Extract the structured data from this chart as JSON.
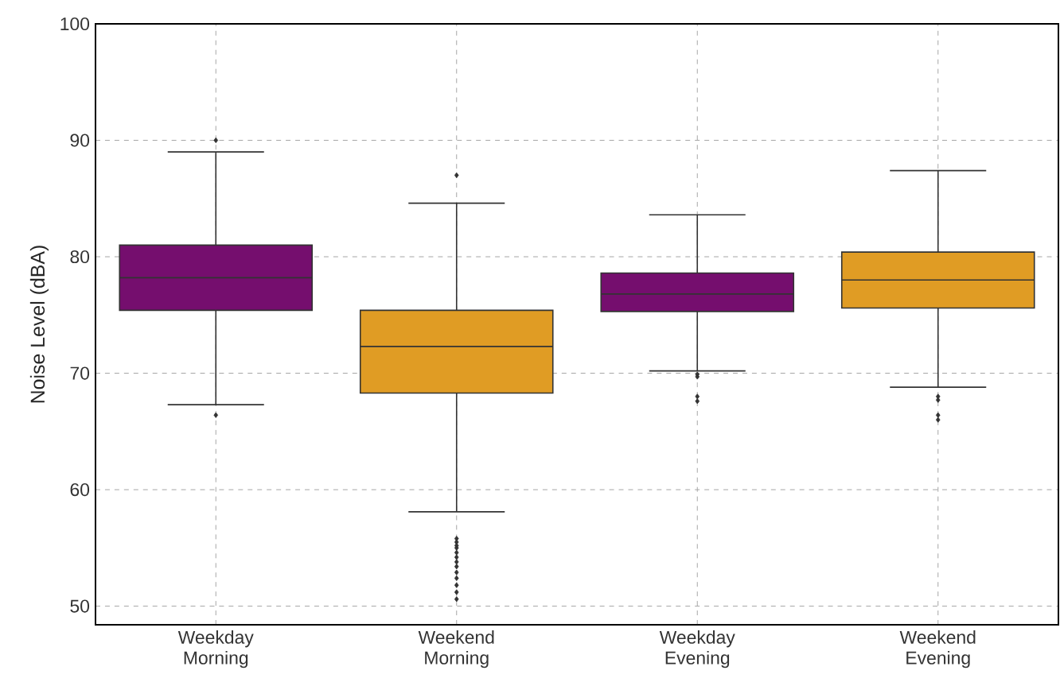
{
  "chart_data": {
    "type": "box",
    "ylabel": "Noise Level (dBA)",
    "categories": [
      "Weekday Morning",
      "Weekend Morning",
      "Weekday Evening",
      "Weekend Evening"
    ],
    "colors": [
      "#750e6e",
      "#e09c24",
      "#750e6e",
      "#e09c24"
    ],
    "boxes": [
      {
        "low": 67.3,
        "q1": 75.4,
        "median": 78.2,
        "q3": 81.0,
        "high": 89.0,
        "outliers": [
          90.0,
          66.4
        ]
      },
      {
        "low": 58.1,
        "q1": 68.3,
        "median": 72.3,
        "q3": 75.4,
        "high": 84.6,
        "outliers": [
          87.0,
          55.8,
          55.5,
          55.2,
          55.0,
          54.6,
          54.2,
          53.8,
          53.4,
          52.9,
          52.4,
          51.8,
          51.2,
          50.6
        ]
      },
      {
        "low": 70.2,
        "q1": 75.3,
        "median": 76.8,
        "q3": 78.6,
        "high": 83.6,
        "outliers": [
          69.9,
          69.7,
          68.0,
          67.6
        ]
      },
      {
        "low": 68.8,
        "q1": 75.6,
        "median": 78.0,
        "q3": 80.4,
        "high": 87.4,
        "outliers": [
          68.0,
          67.7,
          66.4,
          66.0
        ]
      }
    ],
    "ylim": [
      48.4,
      100
    ],
    "yticks": [
      50,
      60,
      70,
      80,
      90,
      100
    ],
    "grid": true
  }
}
